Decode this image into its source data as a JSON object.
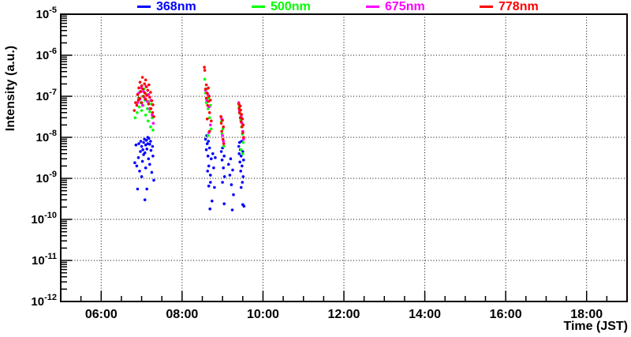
{
  "chart_data": {
    "type": "scatter",
    "title": "",
    "xlabel": "Time (JST)",
    "ylabel": "Intensity (a.u.)",
    "x_axis": {
      "min": 5,
      "max": 19,
      "major_ticks": [
        6,
        8,
        10,
        12,
        14,
        16,
        18
      ],
      "tick_labels": [
        "06:00",
        "08:00",
        "10:00",
        "12:00",
        "14:00",
        "16:00",
        "18:00"
      ],
      "minor_tick_step_hours": 0.5
    },
    "y_axis": {
      "scale": "log",
      "max_exp": -5,
      "min_exp": -12,
      "tick_exponents": [
        -5,
        -6,
        -7,
        -8,
        -9,
        -10,
        -11,
        -12
      ]
    },
    "grid": {
      "style": "dotted",
      "color": "#000000",
      "vertical_at_major_x": true,
      "horizontal_at_decades": true
    },
    "legend": {
      "position": "top"
    },
    "marker": {
      "shape": "circle",
      "radius_px": 1.8
    },
    "series": [
      {
        "name": "368nm",
        "color": "#0000ff",
        "points": [
          [
            6.83,
            2.4e-09
          ],
          [
            6.86,
            6.5e-09
          ],
          [
            6.88,
            2e-09
          ],
          [
            6.9,
            5.5e-10
          ],
          [
            6.92,
            3.2e-09
          ],
          [
            6.93,
            7e-09
          ],
          [
            6.95,
            1.5e-09
          ],
          [
            6.97,
            4.5e-09
          ],
          [
            6.98,
            8e-09
          ],
          [
            7.0,
            6e-09
          ],
          [
            7.0,
            1.1e-09
          ],
          [
            7.02,
            2.6e-09
          ],
          [
            7.03,
            5e-09
          ],
          [
            7.05,
            7.5e-09
          ],
          [
            7.05,
            3.8e-09
          ],
          [
            7.07,
            9e-09
          ],
          [
            7.08,
            3e-10
          ],
          [
            7.08,
            4.2e-09
          ],
          [
            7.1,
            6.5e-09
          ],
          [
            7.1,
            1.8e-09
          ],
          [
            7.12,
            8.5e-09
          ],
          [
            7.13,
            5.2e-09
          ],
          [
            7.13,
            5.5e-10
          ],
          [
            7.15,
            1e-08
          ],
          [
            7.15,
            7e-09
          ],
          [
            7.17,
            3e-09
          ],
          [
            7.18,
            9.5e-09
          ],
          [
            7.2,
            6.8e-09
          ],
          [
            7.2,
            2.2e-09
          ],
          [
            7.22,
            8e-09
          ],
          [
            7.23,
            4.8e-09
          ],
          [
            7.25,
            1.4e-09
          ],
          [
            7.27,
            6e-09
          ],
          [
            7.28,
            3.5e-09
          ],
          [
            7.3,
            9e-10
          ],
          [
            8.58,
            9e-09
          ],
          [
            8.6,
            5e-09
          ],
          [
            8.61,
            1.1e-08
          ],
          [
            8.62,
            7e-09
          ],
          [
            8.63,
            1.5e-09
          ],
          [
            8.64,
            3.5e-09
          ],
          [
            8.65,
            8e-09
          ],
          [
            8.66,
            2e-09
          ],
          [
            8.66,
            6.5e-10
          ],
          [
            8.68,
            5.5e-09
          ],
          [
            8.69,
            1.8e-10
          ],
          [
            8.7,
            1.2e-09
          ],
          [
            8.7,
            8e-10
          ],
          [
            8.72,
            3e-09
          ],
          [
            8.74,
            2.8e-10
          ],
          [
            8.76,
            4e-09
          ],
          [
            8.78,
            1.8e-09
          ],
          [
            8.8,
            6e-10
          ],
          [
            8.82,
            3.2e-09
          ],
          [
            8.97,
            4.5e-09
          ],
          [
            8.99,
            2.8e-09
          ],
          [
            9.0,
            5.5e-09
          ],
          [
            9.0,
            8e-10
          ],
          [
            9.02,
            1.8e-09
          ],
          [
            9.04,
            3.5e-09
          ],
          [
            9.04,
            2.4e-10
          ],
          [
            9.05,
            1.1e-09
          ],
          [
            9.15,
            2.2e-09
          ],
          [
            9.18,
            1.2e-09
          ],
          [
            9.2,
            3e-09
          ],
          [
            9.22,
            7e-10
          ],
          [
            9.24,
            1.7e-10
          ],
          [
            9.25,
            1.6e-09
          ],
          [
            9.27,
            4e-10
          ],
          [
            9.4,
            6e-09
          ],
          [
            9.41,
            4e-09
          ],
          [
            9.42,
            7.5e-09
          ],
          [
            9.43,
            2.5e-09
          ],
          [
            9.44,
            5e-09
          ],
          [
            9.45,
            1.5e-09
          ],
          [
            9.46,
            3.5e-09
          ],
          [
            9.46,
            6e-10
          ],
          [
            9.47,
            8e-09
          ],
          [
            9.48,
            2e-09
          ],
          [
            9.49,
            8e-10
          ],
          [
            9.5,
            4.5e-09
          ],
          [
            9.5,
            2.3e-10
          ],
          [
            9.51,
            1.1e-09
          ],
          [
            9.52,
            2.8e-09
          ],
          [
            9.53,
            2.1e-10
          ]
        ]
      },
      {
        "name": "500nm",
        "color": "#00ff00",
        "points": [
          [
            6.84,
            3e-08
          ],
          [
            6.89,
            4e-08
          ],
          [
            6.92,
            9e-08
          ],
          [
            6.94,
            5.5e-08
          ],
          [
            6.96,
            1.3e-07
          ],
          [
            6.98,
            7e-08
          ],
          [
            7.0,
            4.5e-08
          ],
          [
            7.02,
            1e-07
          ],
          [
            7.04,
            6e-08
          ],
          [
            7.06,
            1.5e-07
          ],
          [
            7.08,
            8e-08
          ],
          [
            7.1,
            3.5e-08
          ],
          [
            7.12,
            1.1e-07
          ],
          [
            7.14,
            5e-08
          ],
          [
            7.16,
            2.5e-08
          ],
          [
            7.18,
            7.5e-08
          ],
          [
            7.2,
            4.2e-08
          ],
          [
            7.22,
            1.8e-08
          ],
          [
            7.24,
            6.5e-08
          ],
          [
            7.26,
            3e-08
          ],
          [
            7.28,
            1.5e-08
          ],
          [
            8.56,
            2.6e-07
          ],
          [
            8.58,
            1.2e-07
          ],
          [
            8.6,
            7e-08
          ],
          [
            8.62,
            1.5e-07
          ],
          [
            8.64,
            5e-08
          ],
          [
            8.64,
            1.1e-08
          ],
          [
            8.66,
            9e-08
          ],
          [
            8.68,
            3e-08
          ],
          [
            8.7,
            6e-08
          ],
          [
            8.72,
            1.6e-08
          ],
          [
            8.97,
            2.4e-08
          ],
          [
            8.99,
            1.2e-08
          ],
          [
            9.01,
            1.6e-08
          ],
          [
            9.03,
            6e-09
          ],
          [
            9.41,
            5.5e-08
          ],
          [
            9.43,
            3.8e-08
          ],
          [
            9.45,
            2.6e-08
          ],
          [
            9.46,
            5e-09
          ],
          [
            9.47,
            1.8e-08
          ],
          [
            9.49,
            1.2e-08
          ],
          [
            9.5,
            4e-09
          ],
          [
            9.51,
            7.5e-09
          ]
        ]
      },
      {
        "name": "675nm",
        "color": "#ff00ff",
        "points": [
          [
            6.9,
            7e-08
          ],
          [
            6.93,
            1.2e-07
          ],
          [
            6.96,
            8.5e-08
          ],
          [
            6.99,
            1.6e-07
          ],
          [
            7.02,
            6e-08
          ],
          [
            7.05,
            1.3e-07
          ],
          [
            7.08,
            9e-08
          ],
          [
            7.11,
            1.75e-07
          ],
          [
            7.14,
            7.5e-08
          ],
          [
            7.17,
            1.1e-07
          ],
          [
            7.2,
            5e-08
          ],
          [
            7.23,
            8e-08
          ],
          [
            7.26,
            3.5e-08
          ],
          [
            7.29,
            2.2e-08
          ],
          [
            8.58,
            1.4e-07
          ],
          [
            8.61,
            8e-08
          ],
          [
            8.64,
            1.1e-07
          ],
          [
            8.66,
            1.3e-08
          ],
          [
            8.67,
            5.5e-08
          ],
          [
            8.7,
            2e-08
          ],
          [
            8.98,
            2.8e-08
          ],
          [
            9.0,
            1.1e-08
          ],
          [
            9.02,
            8e-09
          ],
          [
            9.4,
            7e-08
          ],
          [
            9.42,
            4.5e-08
          ],
          [
            9.44,
            5.8e-08
          ],
          [
            9.46,
            3.2e-08
          ],
          [
            9.48,
            2.2e-08
          ],
          [
            9.5,
            1.4e-08
          ],
          [
            9.52,
            9e-09
          ]
        ]
      },
      {
        "name": "778nm",
        "color": "#ff0000",
        "points": [
          [
            6.82,
            4.5e-08
          ],
          [
            6.85,
            7e-08
          ],
          [
            6.88,
            6e-08
          ],
          [
            6.9,
            1.1e-07
          ],
          [
            6.92,
            8e-08
          ],
          [
            6.93,
            1.6e-07
          ],
          [
            6.95,
            9e-08
          ],
          [
            6.96,
            2.2e-07
          ],
          [
            6.98,
            1.3e-07
          ],
          [
            7.0,
            1.8e-07
          ],
          [
            7.0,
            7e-08
          ],
          [
            7.02,
            2.9e-07
          ],
          [
            7.03,
            1.5e-07
          ],
          [
            7.05,
            1e-07
          ],
          [
            7.07,
            2e-07
          ],
          [
            7.08,
            1.2e-07
          ],
          [
            7.1,
            2.5e-07
          ],
          [
            7.1,
            8.5e-08
          ],
          [
            7.12,
            1.7e-07
          ],
          [
            7.13,
            1.05e-07
          ],
          [
            7.15,
            1.4e-07
          ],
          [
            7.17,
            6.5e-08
          ],
          [
            7.18,
            1.9e-07
          ],
          [
            7.2,
            9.5e-08
          ],
          [
            7.22,
            1.25e-07
          ],
          [
            7.23,
            5e-08
          ],
          [
            7.25,
            7.8e-08
          ],
          [
            7.27,
            4e-08
          ],
          [
            7.28,
            6.2e-08
          ],
          [
            7.3,
            3.2e-08
          ],
          [
            8.55,
            5.1e-07
          ],
          [
            8.56,
            4.3e-07
          ],
          [
            8.58,
            1.5e-07
          ],
          [
            8.6,
            1.9e-07
          ],
          [
            8.6,
            9e-08
          ],
          [
            8.62,
            1.2e-07
          ],
          [
            8.62,
            2.8e-08
          ],
          [
            8.63,
            6e-08
          ],
          [
            8.65,
            1.6e-07
          ],
          [
            8.65,
            7.5e-08
          ],
          [
            8.67,
            1e-07
          ],
          [
            8.68,
            4e-08
          ],
          [
            8.68,
            1.4e-08
          ],
          [
            8.7,
            8e-08
          ],
          [
            8.72,
            2.5e-08
          ],
          [
            8.96,
            3.2e-08
          ],
          [
            8.97,
            2.2e-08
          ],
          [
            8.98,
            1.4e-08
          ],
          [
            9.0,
            2.6e-08
          ],
          [
            9.01,
            9e-09
          ],
          [
            9.02,
            1.8e-08
          ],
          [
            9.03,
            7e-09
          ],
          [
            9.4,
            6.5e-08
          ],
          [
            9.41,
            5e-08
          ],
          [
            9.42,
            4e-08
          ],
          [
            9.43,
            5.8e-08
          ],
          [
            9.44,
            3e-08
          ],
          [
            9.45,
            4.6e-08
          ],
          [
            9.46,
            2.4e-08
          ],
          [
            9.47,
            3.6e-08
          ],
          [
            9.48,
            1.8e-08
          ],
          [
            9.49,
            2.8e-08
          ],
          [
            9.5,
            1.3e-08
          ],
          [
            9.51,
            2e-08
          ],
          [
            9.52,
            1e-08
          ]
        ]
      }
    ]
  }
}
